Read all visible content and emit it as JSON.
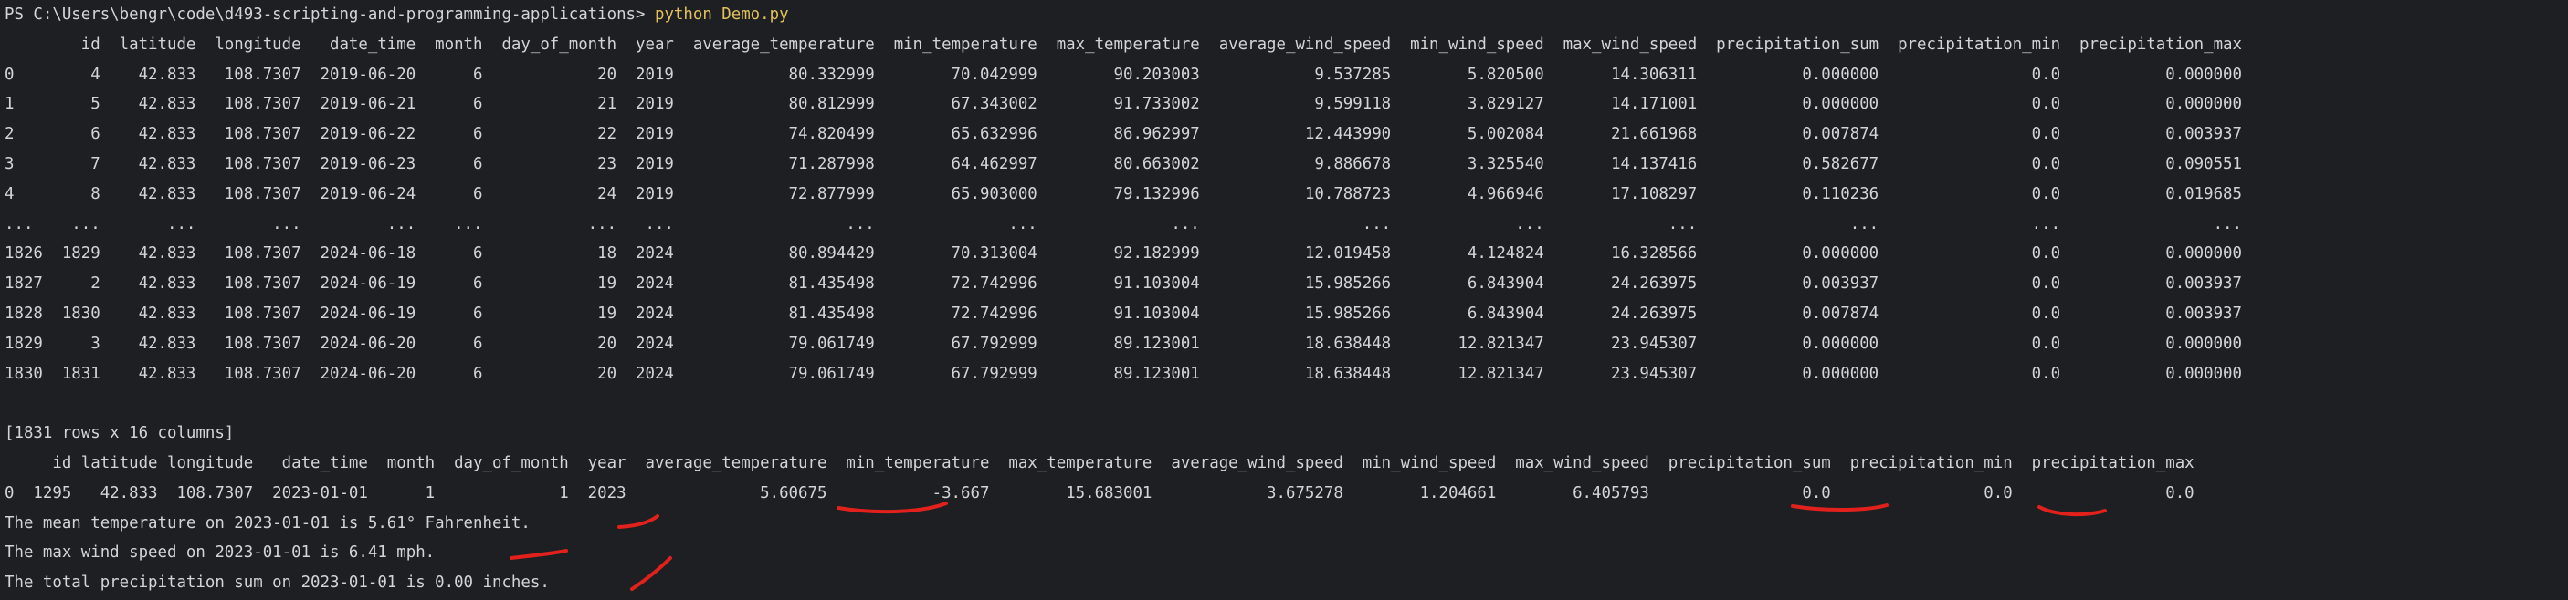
{
  "terminal": {
    "prompt": "PS C:\\Users\\bengr\\code\\d493-scripting-and-programming-applications> ",
    "command": "python Demo.py"
  },
  "table1": {
    "header": "        id  latitude  longitude   date_time  month  day_of_month  year  average_temperature  min_temperature  max_temperature  average_wind_speed  min_wind_speed  max_wind_speed  precipitation_sum  precipitation_min  precipitation_max",
    "rows": [
      "0        4    42.833   108.7307  2019-06-20      6            20  2019            80.332999        70.042999        90.203003            9.537285        5.820500       14.306311           0.000000                0.0           0.000000",
      "1        5    42.833   108.7307  2019-06-21      6            21  2019            80.812999        67.343002        91.733002            9.599118        3.829127       14.171001           0.000000                0.0           0.000000",
      "2        6    42.833   108.7307  2019-06-22      6            22  2019            74.820499        65.632996        86.962997           12.443990        5.002084       21.661968           0.007874                0.0           0.003937",
      "3        7    42.833   108.7307  2019-06-23      6            23  2019            71.287998        64.462997        80.663002            9.886678        3.325540       14.137416           0.582677                0.0           0.090551",
      "4        8    42.833   108.7307  2019-06-24      6            24  2019            72.877999        65.903000        79.132996           10.788723        4.966946       17.108297           0.110236                0.0           0.019685",
      "...    ...       ...        ...         ...    ...           ...   ...                  ...              ...              ...                 ...             ...             ...                ...                ...                ...",
      "1826  1829    42.833   108.7307  2024-06-18      6            18  2024            80.894429        70.313004        92.182999           12.019458        4.124824       16.328566           0.000000                0.0           0.000000",
      "1827     2    42.833   108.7307  2024-06-19      6            19  2024            81.435498        72.742996        91.103004           15.985266        6.843904       24.263975           0.003937                0.0           0.003937",
      "1828  1830    42.833   108.7307  2024-06-19      6            19  2024            81.435498        72.742996        91.103004           15.985266        6.843904       24.263975           0.007874                0.0           0.003937",
      "1829     3    42.833   108.7307  2024-06-20      6            20  2024            79.061749        67.792999        89.123001           18.638448       12.821347       23.945307           0.000000                0.0           0.000000",
      "1830  1831    42.833   108.7307  2024-06-20      6            20  2024            79.061749        67.792999        89.123001           18.638448       12.821347       23.945307           0.000000                0.0           0.000000"
    ],
    "summary": "[1831 rows x 16 columns]"
  },
  "table2": {
    "header": "     id latitude longitude   date_time  month  day_of_month  year  average_temperature  min_temperature  max_temperature  average_wind_speed  min_wind_speed  max_wind_speed  precipitation_sum  precipitation_min  precipitation_max",
    "row": "0  1295   42.833  108.7307  2023-01-01      1             1  2023              5.60675           -3.667        15.683001            3.675278        1.204661        6.405793                0.0                0.0                0.0"
  },
  "messages": [
    "The mean temperature on 2023-01-01 is 5.61° Fahrenheit.",
    "The max wind speed on 2023-01-01 is 6.41 mph.",
    "The total precipitation sum on 2023-01-01 is 0.00 inches."
  ],
  "colors": {
    "background": "#1e1f22",
    "text": "#d3d4d6",
    "command": "#e2c15c",
    "annotation": "#e2211c"
  }
}
